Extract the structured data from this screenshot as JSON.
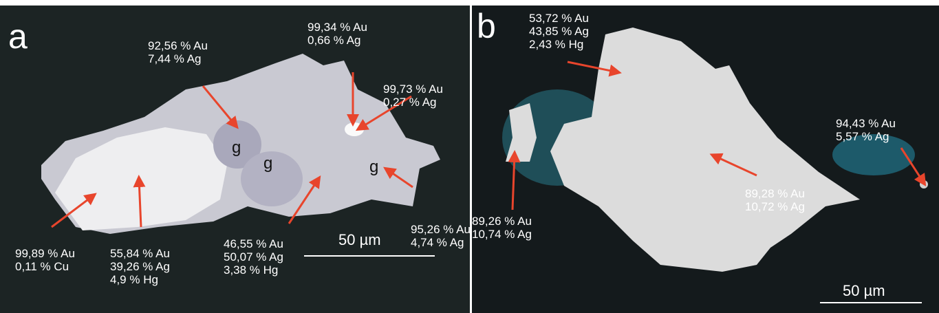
{
  "panels": [
    {
      "label": "a",
      "phase_marks": [
        "g",
        "g",
        "g"
      ],
      "annotations": [
        {
          "lines": [
            "92,56 % Au",
            "7,44 % Ag"
          ]
        },
        {
          "lines": [
            "99,34 % Au",
            "0,66 % Ag"
          ]
        },
        {
          "lines": [
            "99,73 % Au",
            "0,27 % Ag"
          ]
        },
        {
          "lines": [
            "95,26 % Au",
            "4,74 % Ag"
          ]
        },
        {
          "lines": [
            "46,55 % Au",
            "50,07 % Ag",
            "3,38 % Hg"
          ]
        },
        {
          "lines": [
            "55,84 % Au",
            "39,26 % Ag",
            "4,9 % Hg"
          ]
        },
        {
          "lines": [
            "99,89 % Au",
            "0,11 % Cu"
          ]
        }
      ],
      "scale_bar": "50 µm"
    },
    {
      "label": "b",
      "annotations": [
        {
          "lines": [
            "53,72 % Au",
            "43,85 % Ag",
            "2,43 % Hg"
          ]
        },
        {
          "lines": [
            "94,43 % Au",
            "5,57 % Ag"
          ]
        },
        {
          "lines": [
            "89,28 % Au",
            "10,72 % Ag"
          ]
        },
        {
          "lines": [
            "89,26 % Au",
            "10,74 % Ag"
          ]
        }
      ],
      "scale_bar": "50 µm"
    }
  ]
}
